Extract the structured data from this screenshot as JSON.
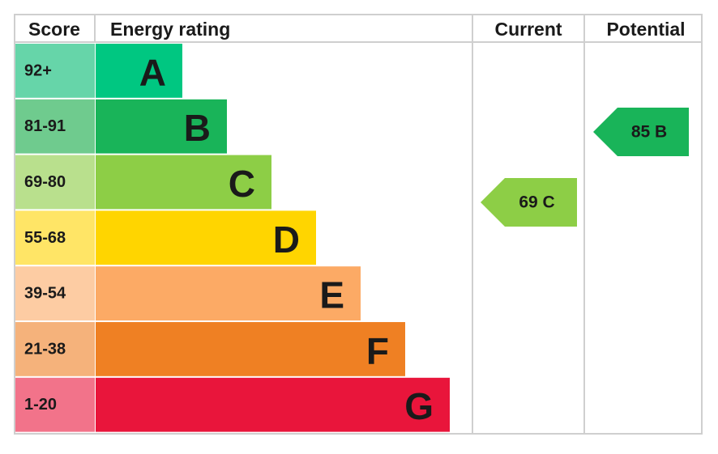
{
  "header": {
    "score": "Score",
    "energy_rating": "Energy rating",
    "current": "Current",
    "potential": "Potential"
  },
  "bands": [
    {
      "score": "92+",
      "letter": "A",
      "color": "#00c781",
      "light": "#66d5a9"
    },
    {
      "score": "81-91",
      "letter": "B",
      "color": "#19b459",
      "light": "#6fcb8e"
    },
    {
      "score": "69-80",
      "letter": "C",
      "color": "#8dce46",
      "light": "#b9e08d"
    },
    {
      "score": "55-68",
      "letter": "D",
      "color": "#ffd500",
      "light": "#ffe566"
    },
    {
      "score": "39-54",
      "letter": "E",
      "color": "#fcaa65",
      "light": "#fdcca3"
    },
    {
      "score": "21-38",
      "letter": "F",
      "color": "#ef8023",
      "light": "#f5b27b"
    },
    {
      "score": "1-20",
      "letter": "G",
      "color": "#e9153b",
      "light": "#f2738a"
    }
  ],
  "current": {
    "label": "69 C",
    "color": "#8dce46"
  },
  "potential": {
    "label": "85 B",
    "color": "#19b459"
  }
}
